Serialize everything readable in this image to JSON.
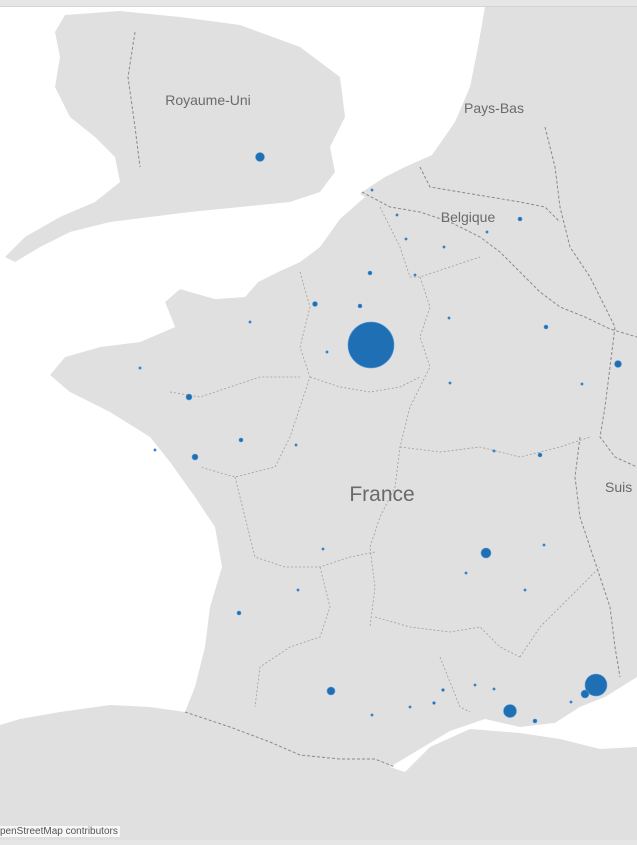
{
  "map": {
    "countries": [
      {
        "id": "uk",
        "label": "Royaume-Uni"
      },
      {
        "id": "nl",
        "label": "Pays-Bas"
      },
      {
        "id": "be",
        "label": "Belgique"
      },
      {
        "id": "fr",
        "label": "France"
      },
      {
        "id": "ch",
        "label": "Suis"
      }
    ],
    "attribution": "penStreetMap contributors",
    "colors": {
      "land": "#e0e0e0",
      "water": "#ffffff",
      "border": "#8a8a8a",
      "marker": "#1f6fb4"
    },
    "legend": null
  }
}
